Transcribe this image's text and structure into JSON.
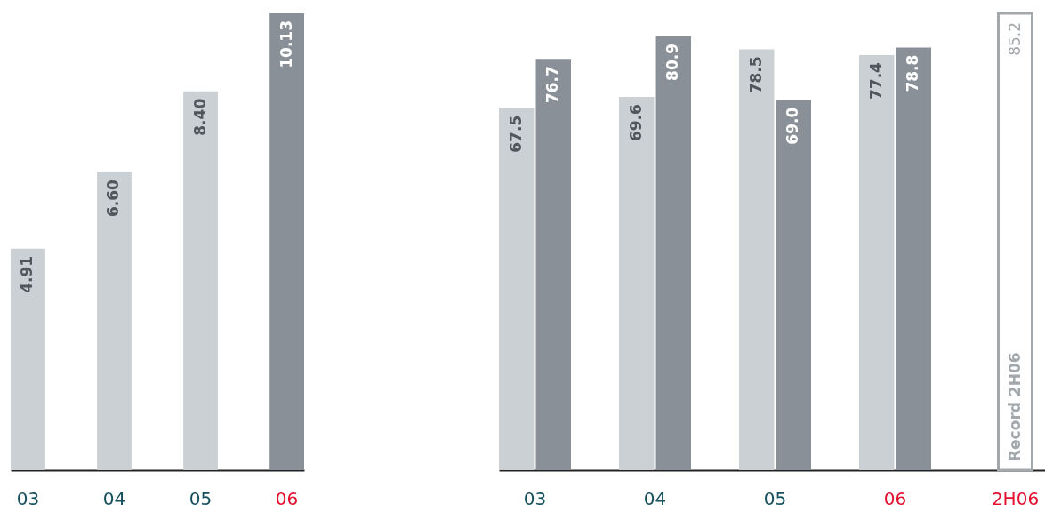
{
  "chart_data": [
    {
      "type": "bar",
      "categories": [
        "03",
        "04",
        "05",
        "06"
      ],
      "values": [
        4.91,
        6.6,
        8.4,
        10.13
      ],
      "colors": [
        "#cbd0d4",
        "#cbd0d4",
        "#cbd0d4",
        "#8a9097"
      ],
      "value_labels": [
        "4.91",
        "6.60",
        "8.40",
        "10.13"
      ]
    },
    {
      "type": "bar",
      "categories": [
        "03",
        "04",
        "05",
        "06",
        "2H06"
      ],
      "series": [
        {
          "color": "#cbd0d4",
          "values": [
            67.5,
            69.6,
            78.5,
            77.4,
            null
          ],
          "value_labels": [
            "67.5",
            "69.6",
            "78.5",
            "77.4",
            null
          ]
        },
        {
          "color": "#8a9097",
          "values": [
            76.7,
            80.9,
            69.0,
            78.8,
            null
          ],
          "value_labels": [
            "76.7",
            "80.9",
            "69.0",
            "78.8",
            null
          ]
        },
        {
          "color": "#a3a8ad",
          "values": [
            null,
            null,
            null,
            null,
            85.2
          ],
          "value_labels": [
            null,
            null,
            null,
            null,
            "85.2"
          ]
        }
      ],
      "annotations": [
        {
          "text": "Record 2H06",
          "x": "2H06",
          "y": 0
        }
      ]
    }
  ]
}
